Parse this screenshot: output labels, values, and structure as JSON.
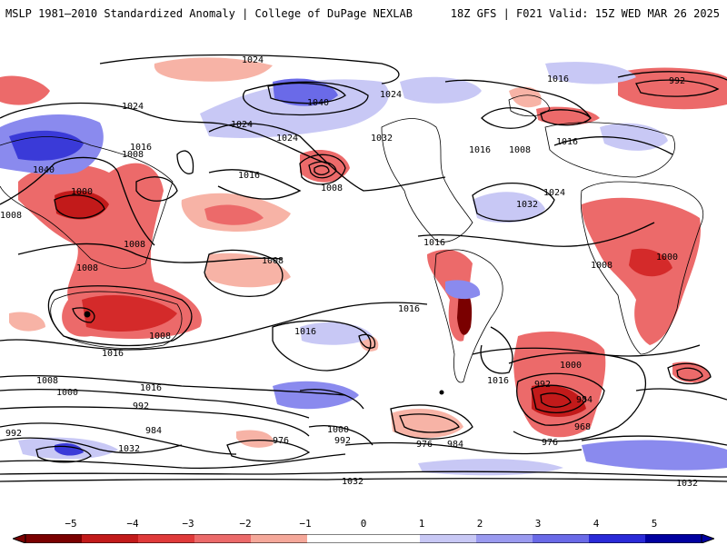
{
  "header": {
    "title_left": "MSLP 1981–2010 Standardized Anomaly | College of DuPage NEXLAB",
    "title_right": "18Z GFS | F021 Valid: 15Z WED MAR 26 2025"
  },
  "colorbar": {
    "ticks": [
      "−5",
      "−4",
      "−3",
      "−2",
      "−1",
      "0",
      "1",
      "2",
      "3",
      "4",
      "5"
    ],
    "colors": [
      "#7a0000",
      "#c21a1a",
      "#e03a3a",
      "#ec6a6a",
      "#f5a89a",
      "#ffffff",
      "#ffffff",
      "#c8c8f5",
      "#9a9af0",
      "#6a6ae8",
      "#2a2ad8",
      "#0000a0"
    ]
  },
  "contour_labels": [
    "1024",
    "1024",
    "1024",
    "1024",
    "1024",
    "1024",
    "1040",
    "1032",
    "1032",
    "1016",
    "1016",
    "1016",
    "1016",
    "1016",
    "1016",
    "1016",
    "1016",
    "1016",
    "1016",
    "1016",
    "1008",
    "1008",
    "1008",
    "1008",
    "1008",
    "1008",
    "1008",
    "1008",
    "1008",
    "1008",
    "1000",
    "1000",
    "1000",
    "1000",
    "1000",
    "992",
    "992",
    "992",
    "992",
    "992",
    "984",
    "984",
    "984",
    "976",
    "976",
    "976",
    "968",
    "1040",
    "1032",
    "1032",
    "1032"
  ],
  "colors": {
    "neg_light": "#f7b3a6",
    "neg_mid": "#ec6a6a",
    "neg_dark": "#d42a2a",
    "pos_light": "#c8c8f5",
    "pos_mid": "#8a8aee",
    "pos_dark": "#3a3ad8",
    "coast": "#000000"
  }
}
